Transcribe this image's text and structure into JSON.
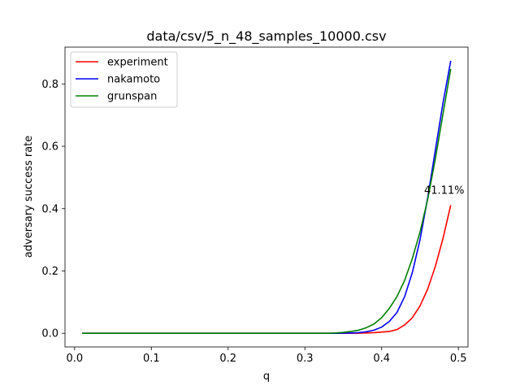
{
  "chart_data": {
    "type": "line",
    "title": "data/csv/5_n_48_samples_10000.csv",
    "xlabel": "q",
    "ylabel": "adversary success rate",
    "xlim": [
      -0.0125,
      0.5125
    ],
    "ylim": [
      -0.0437,
      0.918
    ],
    "xticks": [
      0.0,
      0.1,
      0.2,
      0.3,
      0.4,
      0.5
    ],
    "xtick_labels": [
      "0.0",
      "0.1",
      "0.2",
      "0.3",
      "0.4",
      "0.5"
    ],
    "yticks": [
      0.0,
      0.2,
      0.4,
      0.6,
      0.8
    ],
    "ytick_labels": [
      "0.0",
      "0.2",
      "0.4",
      "0.6",
      "0.8"
    ],
    "grid": false,
    "legend_position": "upper-left",
    "x": [
      0.01,
      0.02,
      0.03,
      0.04,
      0.05,
      0.06,
      0.07,
      0.08,
      0.09,
      0.1,
      0.11,
      0.12,
      0.13,
      0.14,
      0.15,
      0.16,
      0.17,
      0.18,
      0.19,
      0.2,
      0.21,
      0.22,
      0.23,
      0.24,
      0.25,
      0.26,
      0.27,
      0.28,
      0.29,
      0.3,
      0.31,
      0.32,
      0.33,
      0.34,
      0.35,
      0.36,
      0.37,
      0.38,
      0.39,
      0.4,
      0.41,
      0.42,
      0.43,
      0.44,
      0.45,
      0.46,
      0.47,
      0.48,
      0.49
    ],
    "series": [
      {
        "name": "experiment",
        "color": "#ff0000",
        "values": [
          0,
          0,
          0,
          0,
          0,
          0,
          0,
          0,
          0,
          0,
          0,
          0,
          0,
          0,
          0,
          0,
          0,
          0,
          0,
          0,
          0,
          0,
          0,
          0,
          0,
          0,
          0,
          0,
          0,
          0,
          0,
          0,
          0,
          0,
          0,
          0.0002,
          0.0005,
          0.001,
          0.002,
          0.004,
          0.006,
          0.012,
          0.027,
          0.05,
          0.088,
          0.142,
          0.215,
          0.305,
          0.4111
        ]
      },
      {
        "name": "nakamoto",
        "color": "#0000ff",
        "values": [
          0,
          0,
          0,
          0,
          0,
          0,
          0,
          0,
          0,
          0,
          0,
          0,
          0,
          0,
          0,
          0,
          0,
          0,
          0,
          0,
          0,
          0,
          0,
          0,
          0,
          0,
          0,
          0,
          0,
          0,
          0,
          0,
          0,
          0,
          0.0005,
          0.001,
          0.002,
          0.005,
          0.01,
          0.02,
          0.038,
          0.067,
          0.118,
          0.195,
          0.3,
          0.435,
          0.588,
          0.74,
          0.874
        ]
      },
      {
        "name": "grunspan",
        "color": "#008000",
        "values": [
          0,
          0,
          0,
          0,
          0,
          0,
          0,
          0,
          0,
          0,
          0,
          0,
          0,
          0,
          0,
          0,
          0,
          0,
          0,
          0,
          0,
          0,
          0,
          0,
          0,
          0,
          0,
          0,
          0,
          0,
          0,
          0,
          0,
          0.001,
          0.003,
          0.006,
          0.01,
          0.018,
          0.03,
          0.05,
          0.08,
          0.118,
          0.17,
          0.24,
          0.325,
          0.43,
          0.56,
          0.705,
          0.848
        ]
      }
    ],
    "annotations": [
      {
        "text": "41.11%",
        "x": 0.49,
        "y": 0.4111
      }
    ]
  }
}
